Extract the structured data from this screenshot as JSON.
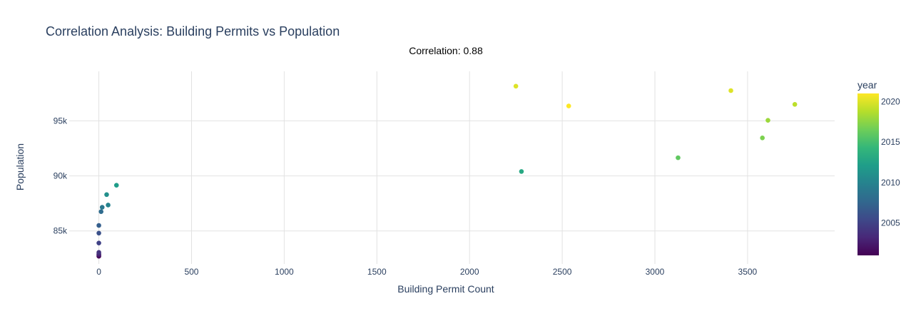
{
  "chart_data": {
    "type": "scatter",
    "title": "Correlation Analysis: Building Permits vs Population",
    "annotation": "Correlation: 0.88",
    "xlabel": "Building Permit Count",
    "ylabel": "Population",
    "xlim": [
      -160,
      3970
    ],
    "ylim": [
      82000,
      99500
    ],
    "x_ticks": [
      0,
      500,
      1000,
      1500,
      2000,
      2500,
      3000,
      3500
    ],
    "y_ticks": [
      85000,
      90000,
      95000
    ],
    "y_tick_labels": [
      "85k",
      "90k",
      "95k"
    ],
    "grid": true,
    "colorbar": {
      "title": "year",
      "range": [
        2001,
        2021
      ],
      "ticks": [
        2005,
        2010,
        2015,
        2020
      ],
      "colorscale": "Viridis"
    },
    "points": [
      {
        "x": 0,
        "y": 82700,
        "year": 2001
      },
      {
        "x": 0,
        "y": 82800,
        "year": 2002
      },
      {
        "x": 0,
        "y": 82900,
        "year": 2003
      },
      {
        "x": 0,
        "y": 83050,
        "year": 2004
      },
      {
        "x": 0,
        "y": 83900,
        "year": 2005
      },
      {
        "x": 0,
        "y": 84800,
        "year": 2006
      },
      {
        "x": 0,
        "y": 85500,
        "year": 2007
      },
      {
        "x": 12,
        "y": 86750,
        "year": 2008
      },
      {
        "x": 18,
        "y": 87150,
        "year": 2009
      },
      {
        "x": 50,
        "y": 87350,
        "year": 2010
      },
      {
        "x": 42,
        "y": 88300,
        "year": 2011
      },
      {
        "x": 95,
        "y": 89150,
        "year": 2012
      },
      {
        "x": 2280,
        "y": 90400,
        "year": 2013
      },
      {
        "x": 3125,
        "y": 91650,
        "year": 2016
      },
      {
        "x": 3580,
        "y": 93450,
        "year": 2017
      },
      {
        "x": 3610,
        "y": 95050,
        "year": 2018
      },
      {
        "x": 3755,
        "y": 96500,
        "year": 2019
      },
      {
        "x": 3410,
        "y": 97750,
        "year": 2020
      },
      {
        "x": 2250,
        "y": 98150,
        "year": 2020
      },
      {
        "x": 2535,
        "y": 96350,
        "year": 2021
      }
    ]
  }
}
